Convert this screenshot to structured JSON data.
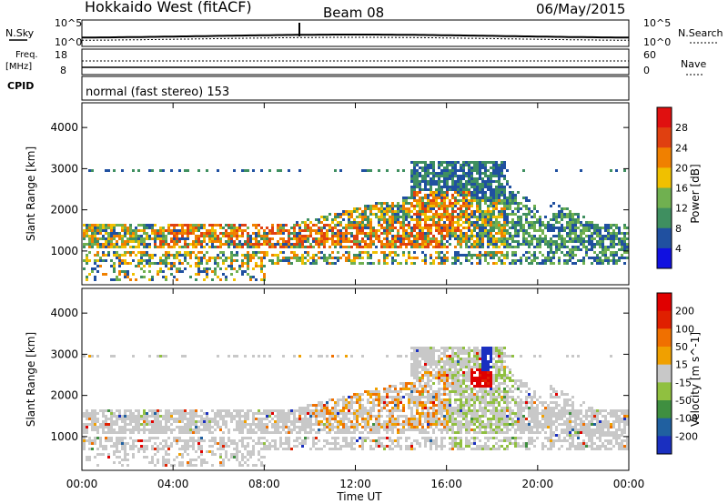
{
  "header": {
    "station": "Hokkaido West (fitACF)",
    "beam": "Beam 08",
    "date": "06/May/2015"
  },
  "top_panels": {
    "nsky_label": "N.Sky",
    "nsearch_label": "N.Search",
    "noise_ticks": [
      "10^5",
      "10^0"
    ],
    "freq_label_1": "Freq.",
    "freq_label_2": "[MHz]",
    "freq_ticks": [
      "18",
      "8"
    ],
    "nave_label": "Nave",
    "nave_ticks": [
      "60",
      "0"
    ],
    "cpid_label": "CPID",
    "cpid_value": "normal (fast stereo) 153"
  },
  "chart_data": [
    {
      "type": "heatmap",
      "panel": "power",
      "ylabel": "Slant Range [km]",
      "yticks": [
        "1000",
        "2000",
        "3000",
        "4000"
      ],
      "ylim": [
        180,
        4600
      ],
      "colorbar_label": "Power [dB]",
      "colorbar_ticks": [
        "4",
        "8",
        "12",
        "16",
        "20",
        "24",
        "28"
      ],
      "colors": [
        "#1010e0",
        "#2050a0",
        "#3f8f60",
        "#70b050",
        "#f0c000",
        "#f08000",
        "#e04010",
        "#e01010"
      ],
      "features": [
        {
          "range_km": [
            950,
            1700
          ],
          "x_hours": [
            0,
            24
          ]
        },
        {
          "range_km": [
            1300,
            2700
          ],
          "x_hours": [
            8,
            16
          ]
        },
        {
          "range_km": [
            2000,
            3200
          ],
          "x_hours": [
            14.5,
            19
          ]
        },
        {
          "range_km": [
            700,
            2300
          ],
          "x_hours": [
            20.5,
            24
          ]
        }
      ]
    },
    {
      "type": "heatmap",
      "panel": "velocity",
      "ylabel": "Slant Range [km]",
      "yticks": [
        "1000",
        "2000",
        "3000",
        "4000"
      ],
      "ylim": [
        180,
        4600
      ],
      "colorbar_label": "Velocity [m s^-1]",
      "colorbar_ticks": [
        "200",
        "100",
        "50",
        "15",
        "-15",
        "-50",
        "-100",
        "-200"
      ],
      "colors": [
        "#1a2fc0",
        "#2060a0",
        "#3f8f40",
        "#90c040",
        "#c8c8c8",
        "#f0a000",
        "#f07000",
        "#e02000",
        "#e00000"
      ],
      "features": [
        {
          "range_km": [
            800,
            1500
          ],
          "x_hours": [
            0,
            24
          ],
          "color": "grey"
        },
        {
          "range_km": [
            1200,
            2600
          ],
          "x_hours": [
            10,
            16
          ],
          "color": "orange"
        },
        {
          "range_km": [
            2200,
            2700
          ],
          "x_hours": [
            17,
            18
          ],
          "color": "red"
        },
        {
          "range_km": [
            2600,
            3200
          ],
          "x_hours": [
            17.5,
            18
          ],
          "color": "blue"
        }
      ]
    }
  ],
  "xaxis": {
    "label": "Time UT",
    "ticks": [
      "00:00",
      "04:00",
      "08:00",
      "12:00",
      "16:00",
      "20:00",
      "00:00"
    ]
  }
}
